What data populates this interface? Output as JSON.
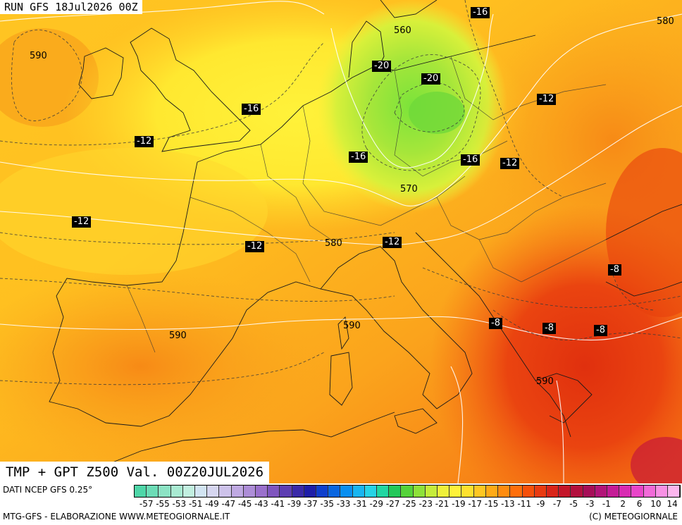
{
  "run": "RUN GFS 18Jul2026 00Z",
  "title": "TMP + GPT Z500 Val. 00Z20JUL2026",
  "source": "DATI NCEP GFS 0.25°",
  "credit_left": "MTG-GFS - ELABORAZIONE WWW.METEOGIORNALE.IT",
  "credit_right": "(C) METEOGIORNALE",
  "temp_labels": [
    {
      "text": "-16",
      "region": "poland-north"
    },
    {
      "text": "-20",
      "region": "denmark-south"
    },
    {
      "text": "-20",
      "region": "germany-north-east"
    },
    {
      "text": "-16",
      "region": "east-england"
    },
    {
      "text": "-12",
      "region": "english-channel-west"
    },
    {
      "text": "-12",
      "region": "belarus-west"
    },
    {
      "text": "-16",
      "region": "germany-west"
    },
    {
      "text": "-16",
      "region": "czech-east"
    },
    {
      "text": "-12",
      "region": "ukraine-west"
    },
    {
      "text": "-12",
      "region": "bay-of-biscay"
    },
    {
      "text": "-12",
      "region": "france-central"
    },
    {
      "text": "-12",
      "region": "austria-south"
    },
    {
      "text": "-8",
      "region": "black-sea-coast"
    },
    {
      "text": "-8",
      "region": "albania"
    },
    {
      "text": "-8",
      "region": "north-greece"
    },
    {
      "text": "-8",
      "region": "turkey-west"
    }
  ],
  "gpt_labels": [
    {
      "text": "560",
      "region": "baltic"
    },
    {
      "text": "580",
      "region": "east-edge"
    },
    {
      "text": "590",
      "region": "atlantic-north"
    },
    {
      "text": "570",
      "region": "germany-south"
    },
    {
      "text": "580",
      "region": "switzerland"
    },
    {
      "text": "590",
      "region": "spain"
    },
    {
      "text": "590",
      "region": "corsica"
    },
    {
      "text": "590",
      "region": "greece"
    }
  ],
  "legend": {
    "ticks": [
      "-57",
      "-55",
      "-53",
      "-51",
      "-49",
      "-47",
      "-45",
      "-43",
      "-41",
      "-39",
      "-37",
      "-35",
      "-33",
      "-31",
      "-29",
      "-27",
      "-25",
      "-23",
      "-21",
      "-19",
      "-17",
      "-15",
      "-13",
      "-11",
      "-9",
      "-7",
      "-5",
      "-3",
      "-1",
      "2",
      "6",
      "10",
      "14"
    ],
    "colors": [
      "#4fd6a8",
      "#6cdcb6",
      "#8ce3c4",
      "#a9ead2",
      "#c2efe0",
      "#d2e4f2",
      "#d6d6f0",
      "#cdc2ea",
      "#bfa9e2",
      "#ad8dd7",
      "#9a70cc",
      "#7f55be",
      "#5d3eb2",
      "#3a2aa8",
      "#1e1ea8",
      "#0f3fcc",
      "#0a66e0",
      "#0a8ff0",
      "#19b5f0",
      "#27d3e6",
      "#22d6a2",
      "#24c85a",
      "#54d23a",
      "#8ee13a",
      "#c5ec3a",
      "#eef03a",
      "#fff23a",
      "#ffe12e",
      "#ffc722",
      "#ffaa16",
      "#ff8c0f",
      "#ff6e0a",
      "#f6500a",
      "#e83a10",
      "#d92418",
      "#c4162a",
      "#b3103e",
      "#a60e58",
      "#b21478",
      "#c41c96",
      "#d82bb2",
      "#e845c8",
      "#f16ad8",
      "#f891e4",
      "#fcb6ee"
    ]
  },
  "colors": {
    "tlabel_bg": "#000000",
    "tlabel_fg": "#ffffff"
  }
}
